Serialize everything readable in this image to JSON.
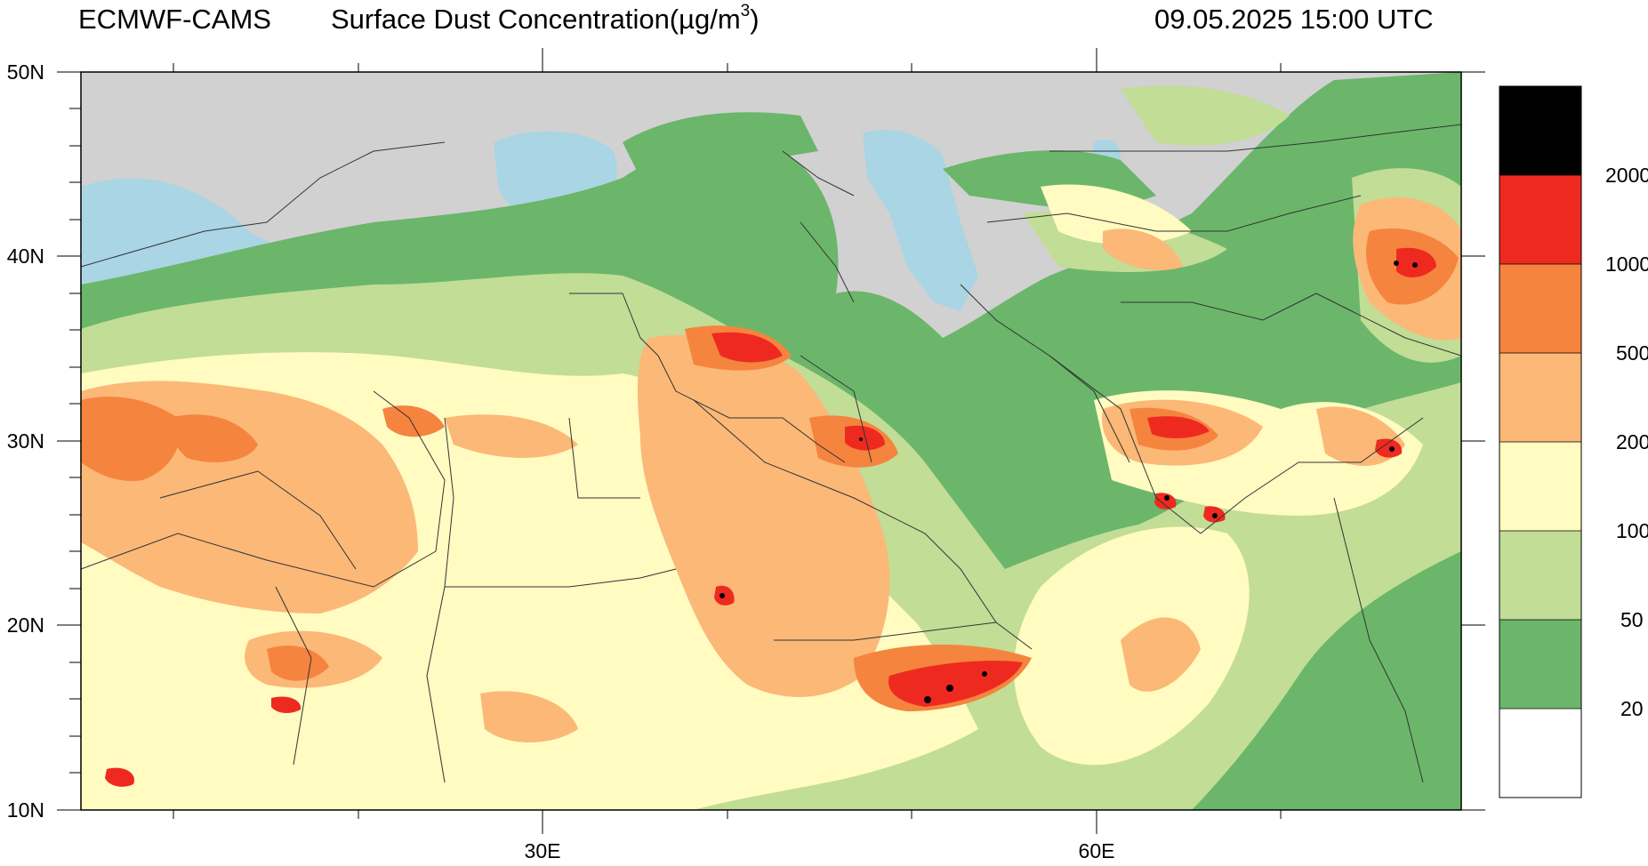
{
  "header": {
    "source": "ECMWF-CAMS",
    "field_prefix": "Surface Dust Concentration(µg/m",
    "field_sup": "3",
    "field_suffix": ")",
    "valid_time": "09.05.2025 15:00 UTC"
  },
  "axes": {
    "lat_labels": [
      "50N",
      "40N",
      "30N",
      "20N",
      "10N"
    ],
    "lon_labels": [
      "30E",
      "60E"
    ]
  },
  "legend": {
    "levels": [
      "2000",
      "1000",
      "500",
      "200",
      "100",
      "50",
      "20"
    ],
    "colors": [
      "#000000",
      "#ee2a20",
      "#f5843f",
      "#fbb877",
      "#fffbc1",
      "#c1dd96",
      "#6bb66a",
      "#ffffff"
    ]
  },
  "map_colors": {
    "land": "#d1d1d1",
    "water": "#a9d5e4",
    "border": "#333333"
  }
}
